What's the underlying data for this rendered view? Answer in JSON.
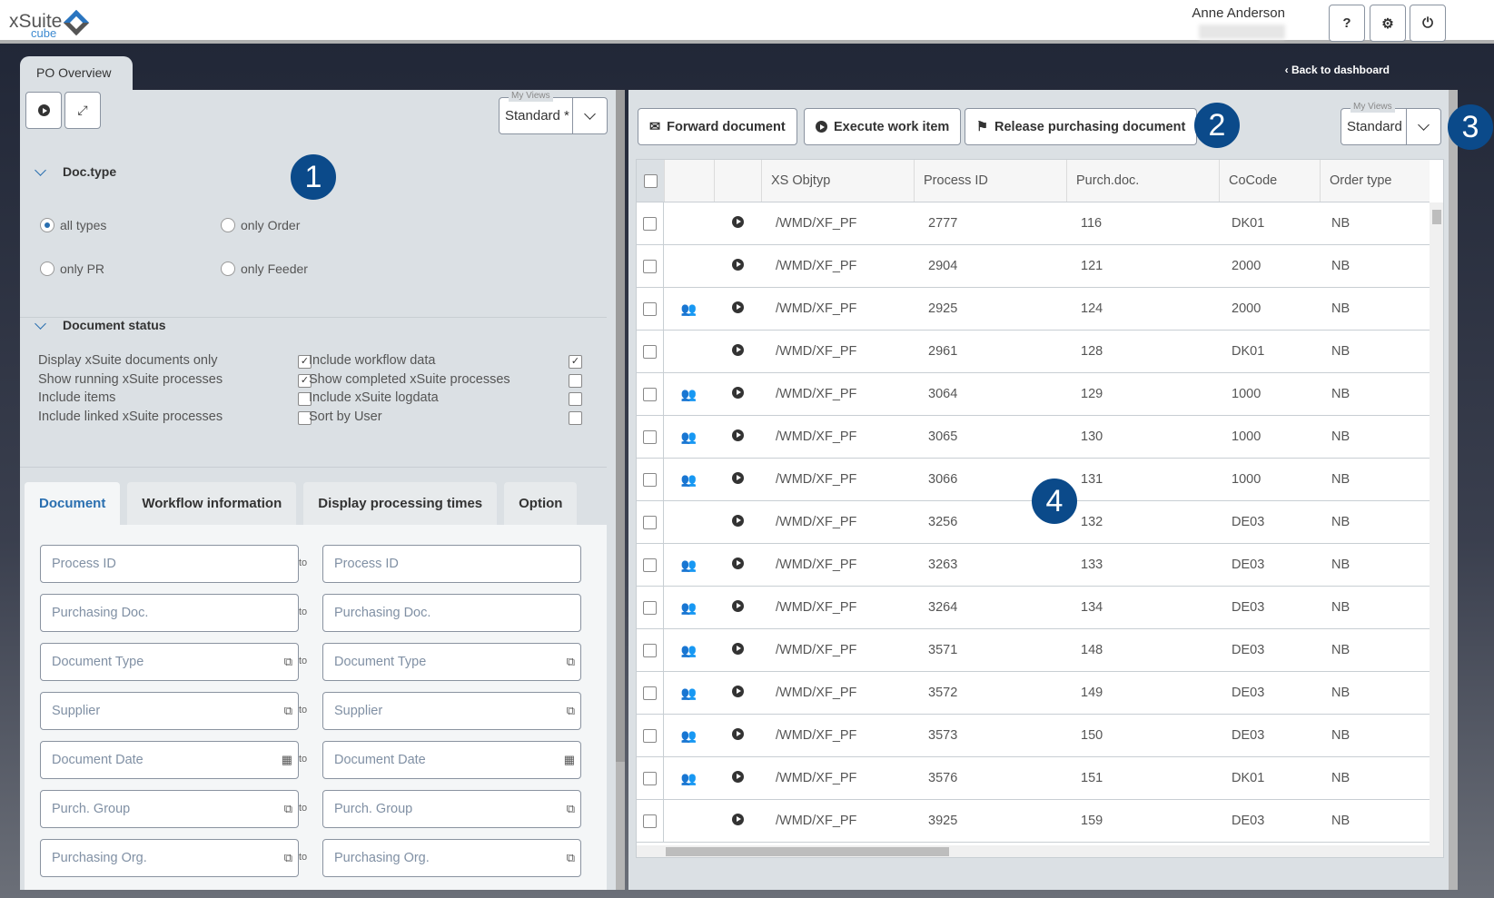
{
  "header": {
    "logo_text": "xSuite",
    "logo_sub": "cube",
    "user": "Anne Anderson",
    "help": "?",
    "settings_icon": "gears-icon",
    "power_icon": "power-icon"
  },
  "app": {
    "tab": "PO Overview",
    "back": "Back to dashboard"
  },
  "left": {
    "my_views_label": "My Views",
    "my_views_value": "Standard *",
    "doc_type": {
      "title": "Doc.type",
      "options": [
        {
          "label": "all types",
          "selected": true
        },
        {
          "label": "only Order",
          "selected": false
        },
        {
          "label": "only PR",
          "selected": false
        },
        {
          "label": "only Feeder",
          "selected": false
        }
      ]
    },
    "doc_status": {
      "title": "Document status",
      "items": [
        {
          "label": "Display xSuite documents only",
          "checked": true
        },
        {
          "label": "Include workflow data",
          "checked": true
        },
        {
          "label": "Show running xSuite processes",
          "checked": true
        },
        {
          "label": "Show completed xSuite processes",
          "checked": false
        },
        {
          "label": "Include items",
          "checked": false
        },
        {
          "label": "Include xSuite logdata",
          "checked": false
        },
        {
          "label": "Include linked xSuite processes",
          "checked": false
        },
        {
          "label": "Sort by User",
          "checked": false
        }
      ]
    },
    "tabs": [
      "Document",
      "Workflow information",
      "Display processing times",
      "Option"
    ],
    "active_tab": "Document",
    "to_label": "to",
    "fields": [
      {
        "ph": "Process ID",
        "icon": ""
      },
      {
        "ph": "Purchasing Doc.",
        "icon": ""
      },
      {
        "ph": "Document Type",
        "icon": "popup"
      },
      {
        "ph": "Supplier",
        "icon": "popup"
      },
      {
        "ph": "Document Date",
        "icon": "calendar"
      },
      {
        "ph": "Purch. Group",
        "icon": "popup"
      },
      {
        "ph": "Purchasing Org.",
        "icon": "popup"
      }
    ]
  },
  "right": {
    "buttons": [
      "Forward document",
      "Execute work item",
      "Release purchasing document"
    ],
    "my_views_label": "My Views",
    "my_views_value": "Standard",
    "columns": [
      "XS Objtyp",
      "Process ID",
      "Purch.doc.",
      "CoCode",
      "Order type"
    ],
    "rows": [
      {
        "group": false,
        "obj": "/WMD/XF_PF",
        "pid": "2777",
        "pd": "116",
        "cc": "DK01",
        "ot": "NB"
      },
      {
        "group": false,
        "obj": "/WMD/XF_PF",
        "pid": "2904",
        "pd": "121",
        "cc": "2000",
        "ot": "NB"
      },
      {
        "group": true,
        "obj": "/WMD/XF_PF",
        "pid": "2925",
        "pd": "124",
        "cc": "2000",
        "ot": "NB"
      },
      {
        "group": false,
        "obj": "/WMD/XF_PF",
        "pid": "2961",
        "pd": "128",
        "cc": "DK01",
        "ot": "NB"
      },
      {
        "group": true,
        "obj": "/WMD/XF_PF",
        "pid": "3064",
        "pd": "129",
        "cc": "1000",
        "ot": "NB"
      },
      {
        "group": true,
        "obj": "/WMD/XF_PF",
        "pid": "3065",
        "pd": "130",
        "cc": "1000",
        "ot": "NB"
      },
      {
        "group": true,
        "obj": "/WMD/XF_PF",
        "pid": "3066",
        "pd": "131",
        "cc": "1000",
        "ot": "NB"
      },
      {
        "group": false,
        "obj": "/WMD/XF_PF",
        "pid": "3256",
        "pd": "132",
        "cc": "DE03",
        "ot": "NB"
      },
      {
        "group": true,
        "obj": "/WMD/XF_PF",
        "pid": "3263",
        "pd": "133",
        "cc": "DE03",
        "ot": "NB"
      },
      {
        "group": true,
        "obj": "/WMD/XF_PF",
        "pid": "3264",
        "pd": "134",
        "cc": "DE03",
        "ot": "NB"
      },
      {
        "group": true,
        "obj": "/WMD/XF_PF",
        "pid": "3571",
        "pd": "148",
        "cc": "DE03",
        "ot": "NB"
      },
      {
        "group": true,
        "obj": "/WMD/XF_PF",
        "pid": "3572",
        "pd": "149",
        "cc": "DE03",
        "ot": "NB"
      },
      {
        "group": true,
        "obj": "/WMD/XF_PF",
        "pid": "3573",
        "pd": "150",
        "cc": "DE03",
        "ot": "NB"
      },
      {
        "group": true,
        "obj": "/WMD/XF_PF",
        "pid": "3576",
        "pd": "151",
        "cc": "DK01",
        "ot": "NB"
      },
      {
        "group": false,
        "obj": "/WMD/XF_PF",
        "pid": "3925",
        "pd": "159",
        "cc": "DE03",
        "ot": "NB"
      }
    ]
  },
  "callouts": [
    "1",
    "2",
    "3",
    "4"
  ],
  "colors": {
    "accent": "#2a6fb0",
    "callout": "#0b4a8a"
  }
}
